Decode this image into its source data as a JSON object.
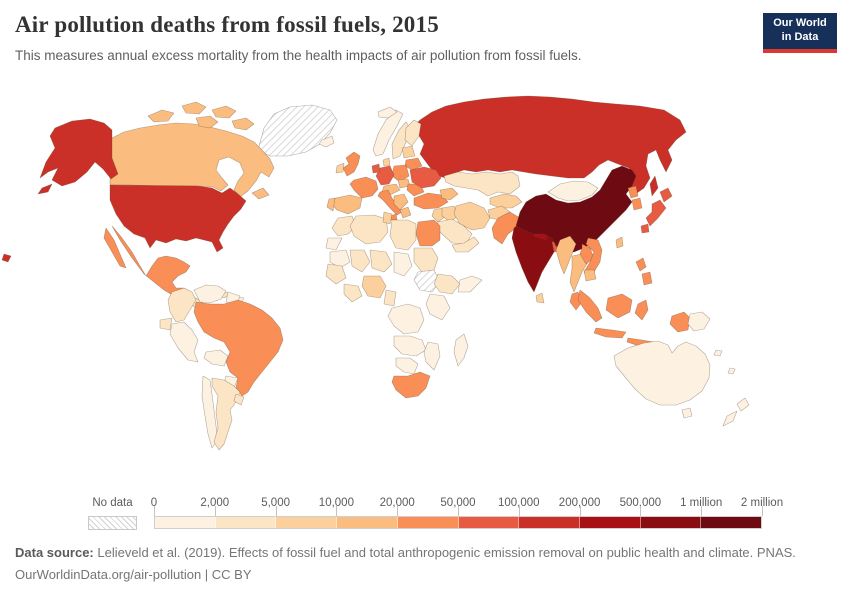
{
  "header": {
    "title": "Air pollution deaths from fossil fuels, 2015",
    "subtitle": "This measures annual excess mortality from the health impacts of air pollution from fossil fuels.",
    "logo": {
      "line1": "Our World",
      "line2": "in Data",
      "bg_color": "#16305a",
      "accent_color": "#d93a2d"
    }
  },
  "legend": {
    "no_data_label": "No data",
    "tick_labels": [
      "0",
      "2,000",
      "5,000",
      "10,000",
      "20,000",
      "50,000",
      "100,000",
      "200,000",
      "500,000",
      "1 million",
      "2 million"
    ],
    "text_color": "#5b5b5b"
  },
  "footer": {
    "source_label": "Data source:",
    "source_text": " Lelieveld et al. (2019). Effects of fossil fuel and total anthropogenic emission removal on public health and climate. PNAS.",
    "license_text": "OurWorldinData.org/air-pollution | CC BY"
  },
  "chart_data": {
    "type": "heatmap",
    "subtype": "world-choropleth",
    "title": "Air pollution deaths from fossil fuels, 2015",
    "unit": "annual excess deaths",
    "legend_position": "bottom",
    "legend": {
      "no_data": {
        "label": "No data",
        "pattern": "diagonal-hatch"
      },
      "bins": [
        {
          "range": "0–2,000",
          "color": "#fdf1e1"
        },
        {
          "range": "2,000–5,000",
          "color": "#fce5c4"
        },
        {
          "range": "5,000–10,000",
          "color": "#fbd09c"
        },
        {
          "range": "10,000–20,000",
          "color": "#fbbc80"
        },
        {
          "range": "20,000–50,000",
          "color": "#f98f57"
        },
        {
          "range": "50,000–100,000",
          "color": "#e65b42"
        },
        {
          "range": "100,000–200,000",
          "color": "#ca3027"
        },
        {
          "range": "200,000–500,000",
          "color": "#a81016"
        },
        {
          "range": "500,000–1 million",
          "color": "#8a0d12"
        },
        {
          "range": "1–2 million",
          "color": "#6e0a12"
        }
      ]
    },
    "regions": [
      {
        "id": "russia",
        "name": "Russia",
        "bin": 6
      },
      {
        "id": "greenland",
        "name": "Greenland",
        "bin": "nodata"
      },
      {
        "id": "canada",
        "name": "Canada",
        "bin": 3
      },
      {
        "id": "usa",
        "name": "United States",
        "bin": 6
      },
      {
        "id": "mexico",
        "name": "Mexico",
        "bin": 4
      },
      {
        "id": "central-america",
        "name": "Central America",
        "bin": 1
      },
      {
        "id": "panama-cr",
        "name": "Panama & Costa Rica",
        "bin": 0
      },
      {
        "id": "cuba",
        "name": "Cuba",
        "bin": 1
      },
      {
        "id": "hispaniola",
        "name": "Hispaniola",
        "bin": 0
      },
      {
        "id": "colombia",
        "name": "Colombia",
        "bin": 1
      },
      {
        "id": "venezuela",
        "name": "Venezuela",
        "bin": 0
      },
      {
        "id": "guyanas",
        "name": "Guyana & Suriname",
        "bin": 0
      },
      {
        "id": "ecuador",
        "name": "Ecuador",
        "bin": 1
      },
      {
        "id": "peru",
        "name": "Peru",
        "bin": 0
      },
      {
        "id": "brazil",
        "name": "Brazil",
        "bin": 4
      },
      {
        "id": "bolivia",
        "name": "Bolivia",
        "bin": 0
      },
      {
        "id": "paraguay",
        "name": "Paraguay",
        "bin": 0
      },
      {
        "id": "chile",
        "name": "Chile",
        "bin": 0
      },
      {
        "id": "argentina",
        "name": "Argentina",
        "bin": 1
      },
      {
        "id": "uruguay",
        "name": "Uruguay",
        "bin": 1
      },
      {
        "id": "iceland",
        "name": "Iceland",
        "bin": 0
      },
      {
        "id": "uk",
        "name": "United Kingdom",
        "bin": 4
      },
      {
        "id": "ireland",
        "name": "Ireland",
        "bin": 2
      },
      {
        "id": "norway",
        "name": "Norway",
        "bin": 0
      },
      {
        "id": "sweden",
        "name": "Sweden",
        "bin": 1
      },
      {
        "id": "finland",
        "name": "Finland",
        "bin": 1
      },
      {
        "id": "denmark",
        "name": "Denmark",
        "bin": 2
      },
      {
        "id": "baltics",
        "name": "Baltic states",
        "bin": 2
      },
      {
        "id": "belarus",
        "name": "Belarus",
        "bin": 4
      },
      {
        "id": "poland",
        "name": "Poland",
        "bin": 4
      },
      {
        "id": "germany",
        "name": "Germany",
        "bin": 5
      },
      {
        "id": "benelux",
        "name": "Benelux",
        "bin": 5
      },
      {
        "id": "france",
        "name": "France",
        "bin": 4
      },
      {
        "id": "spain",
        "name": "Spain",
        "bin": 3
      },
      {
        "id": "portugal",
        "name": "Portugal",
        "bin": 3
      },
      {
        "id": "czech-austria",
        "name": "Czechia & Austria",
        "bin": 3
      },
      {
        "id": "italy",
        "name": "Italy",
        "bin": 4
      },
      {
        "id": "hungary",
        "name": "Hungary & Slovakia",
        "bin": 3
      },
      {
        "id": "romania",
        "name": "Romania",
        "bin": 4
      },
      {
        "id": "balkans",
        "name": "Balkans",
        "bin": 3
      },
      {
        "id": "greece",
        "name": "Greece",
        "bin": 3
      },
      {
        "id": "ukraine",
        "name": "Ukraine",
        "bin": 5
      },
      {
        "id": "turkey",
        "name": "Turkey",
        "bin": 4
      },
      {
        "id": "kazakhstan",
        "name": "Kazakhstan",
        "bin": 1
      },
      {
        "id": "caucasus",
        "name": "Caucasus",
        "bin": 3
      },
      {
        "id": "central-asia",
        "name": "Central Asia",
        "bin": 2
      },
      {
        "id": "levant",
        "name": "Levant",
        "bin": 2
      },
      {
        "id": "iraq",
        "name": "Iraq",
        "bin": 2
      },
      {
        "id": "iran",
        "name": "Iran",
        "bin": 2
      },
      {
        "id": "saudi",
        "name": "Saudi Arabia",
        "bin": 1
      },
      {
        "id": "yemen-oman",
        "name": "Yemen & Oman",
        "bin": 1
      },
      {
        "id": "afghanistan",
        "name": "Afghanistan",
        "bin": 2
      },
      {
        "id": "pakistan",
        "name": "Pakistan",
        "bin": 4
      },
      {
        "id": "india",
        "name": "India",
        "bin": 8
      },
      {
        "id": "nepal",
        "name": "Nepal",
        "bin": 7
      },
      {
        "id": "bangladesh",
        "name": "Bangladesh",
        "bin": 5
      },
      {
        "id": "sri-lanka",
        "name": "Sri Lanka",
        "bin": 2
      },
      {
        "id": "china",
        "name": "China",
        "bin": 9
      },
      {
        "id": "mongolia",
        "name": "Mongolia",
        "bin": 0
      },
      {
        "id": "taiwan",
        "name": "Taiwan",
        "bin": 3
      },
      {
        "id": "n-korea",
        "name": "North Korea",
        "bin": 4
      },
      {
        "id": "s-korea",
        "name": "South Korea",
        "bin": 4
      },
      {
        "id": "japan",
        "name": "Japan",
        "bin": 5
      },
      {
        "id": "myanmar",
        "name": "Myanmar",
        "bin": 3
      },
      {
        "id": "thailand",
        "name": "Thailand",
        "bin": 3
      },
      {
        "id": "laos",
        "name": "Laos",
        "bin": 4
      },
      {
        "id": "vietnam",
        "name": "Vietnam",
        "bin": 4
      },
      {
        "id": "cambodia",
        "name": "Cambodia",
        "bin": 3
      },
      {
        "id": "malaysia",
        "name": "Malaysia",
        "bin": 4
      },
      {
        "id": "indonesia",
        "name": "Indonesia",
        "bin": 4
      },
      {
        "id": "png",
        "name": "Papua New Guinea",
        "bin": 0
      },
      {
        "id": "philippines",
        "name": "Philippines",
        "bin": 4
      },
      {
        "id": "australia",
        "name": "Australia",
        "bin": 0
      },
      {
        "id": "new-zealand",
        "name": "New Zealand",
        "bin": 0
      },
      {
        "id": "pacific-islands",
        "name": "Pacific islands",
        "bin": 0
      },
      {
        "id": "morocco",
        "name": "Morocco",
        "bin": 1
      },
      {
        "id": "western-sahara",
        "name": "Western Sahara",
        "bin": 0
      },
      {
        "id": "algeria",
        "name": "Algeria",
        "bin": 1
      },
      {
        "id": "tunisia",
        "name": "Tunisia",
        "bin": 2
      },
      {
        "id": "libya",
        "name": "Libya",
        "bin": 1
      },
      {
        "id": "egypt",
        "name": "Egypt",
        "bin": 4
      },
      {
        "id": "mauritania",
        "name": "Mauritania",
        "bin": 0
      },
      {
        "id": "mali",
        "name": "Mali",
        "bin": 1
      },
      {
        "id": "niger",
        "name": "Niger",
        "bin": 1
      },
      {
        "id": "chad",
        "name": "Chad",
        "bin": 0
      },
      {
        "id": "sudan",
        "name": "Sudan",
        "bin": 1
      },
      {
        "id": "south-sudan",
        "name": "South Sudan",
        "bin": "nodata"
      },
      {
        "id": "senegal-guinea",
        "name": "Senegal & Guinea",
        "bin": 1
      },
      {
        "id": "ghana-ivory",
        "name": "Côte d'Ivoire & Ghana",
        "bin": 1
      },
      {
        "id": "nigeria",
        "name": "Nigeria",
        "bin": 2
      },
      {
        "id": "cameroon",
        "name": "Cameroon",
        "bin": 1
      },
      {
        "id": "ethiopia",
        "name": "Ethiopia",
        "bin": 1
      },
      {
        "id": "somalia",
        "name": "Somalia",
        "bin": 0
      },
      {
        "id": "kenya-tanzania",
        "name": "Kenya & Tanzania",
        "bin": 0
      },
      {
        "id": "drc",
        "name": "DR Congo",
        "bin": 0
      },
      {
        "id": "angola-zambia",
        "name": "Angola & Zambia",
        "bin": 0
      },
      {
        "id": "mozambique",
        "name": "Mozambique",
        "bin": 0
      },
      {
        "id": "namibia-botswana",
        "name": "Namibia & Botswana",
        "bin": 0
      },
      {
        "id": "south-africa",
        "name": "South Africa",
        "bin": 4
      },
      {
        "id": "madagascar",
        "name": "Madagascar",
        "bin": 0
      }
    ]
  }
}
